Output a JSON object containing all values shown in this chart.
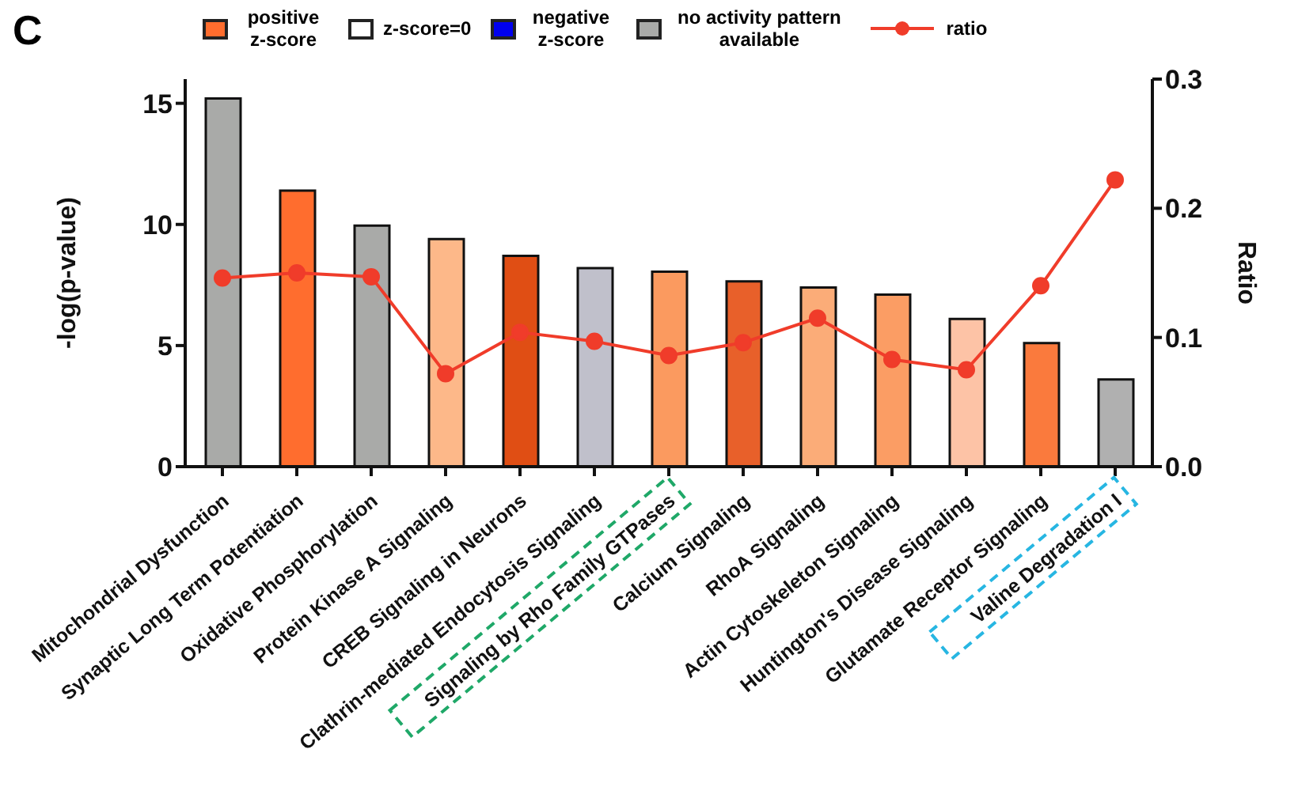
{
  "chart_data": {
    "type": "bar",
    "stacked": true,
    "annotations": [
      "C"
    ],
    "categories": [
      "Mitochondrial Dysfunction",
      "Synaptic Long Term Potentiation",
      "Oxidative Phosphorylation",
      "Protein Kinase A Signaling",
      "CREB Signaling in Neurons",
      "Clathrin-mediated Endocytosis Signaling",
      "Signaling by Rho Family GTPases",
      "Calcium Signaling",
      "RhoA Signaling",
      "Actin Cytoskeleton Signaling",
      "Huntington's Disease Signaling",
      "Glutamate Receptor Signaling",
      "Valine Degradation I"
    ],
    "series": [
      {
        "name": "positive z-score",
        "color": "#ff6d2e",
        "values": [
          null,
          11.4,
          null,
          9.4,
          8.7,
          null,
          8.05,
          7.65,
          7.4,
          7.1,
          6.1,
          5.1,
          null
        ],
        "colors": [
          null,
          "#ff6d2e",
          null,
          "#fdb889",
          "#e04e14",
          null,
          "#fb9a5f",
          "#e8602a",
          "#fbac78",
          "#fb9d64",
          "#fdc3a6",
          "#fa7a3d",
          null
        ]
      },
      {
        "name": "z-score=0",
        "color": "#ffffff",
        "values": [
          null,
          null,
          null,
          null,
          null,
          null,
          null,
          null,
          null,
          null,
          null,
          null,
          null
        ]
      },
      {
        "name": "negative z-score",
        "color": "#0000ee",
        "values": [
          null,
          null,
          null,
          null,
          null,
          null,
          null,
          null,
          null,
          null,
          null,
          null,
          null
        ]
      },
      {
        "name": "no activity pattern available",
        "color": "#a9aaa8",
        "values": [
          15.2,
          null,
          9.95,
          null,
          null,
          8.2,
          null,
          null,
          null,
          null,
          null,
          null,
          3.6
        ],
        "colors": [
          "#a9aaa8",
          null,
          "#a9aaa8",
          null,
          null,
          "#c0c0cb",
          null,
          null,
          null,
          null,
          null,
          null,
          "#b0b0b0"
        ]
      },
      {
        "name": "ratio",
        "type": "line",
        "axis": "y2",
        "color": "#f03c2a",
        "marker": "circle",
        "values": [
          0.146,
          0.15,
          0.147,
          0.072,
          0.104,
          0.097,
          0.086,
          0.096,
          0.115,
          0.083,
          0.075,
          0.14,
          0.222
        ]
      }
    ],
    "ylabel": "-log(p-value)",
    "y2label": "Ratio",
    "ylim": [
      0,
      16
    ],
    "yticks": [
      0,
      5,
      10,
      15
    ],
    "y2lim": [
      0,
      0.3
    ],
    "y2ticks": [
      {
        "value": 0,
        "label": "0.0"
      },
      0.1,
      0.2,
      0.3
    ],
    "legend": "top"
  }
}
